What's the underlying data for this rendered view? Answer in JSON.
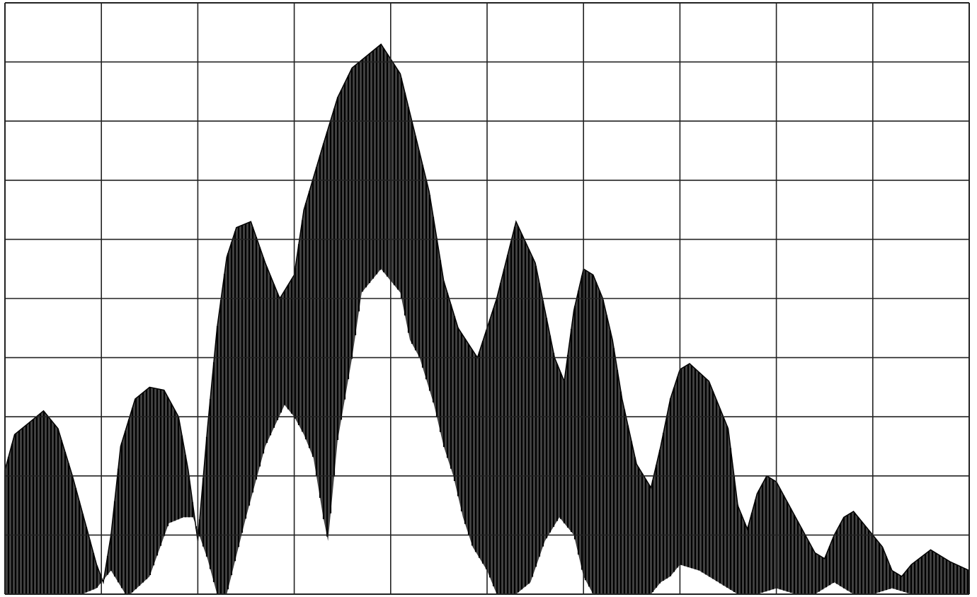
{
  "chart_data": {
    "type": "area",
    "title": "",
    "xlabel": "",
    "ylabel": "",
    "grid": true,
    "grid_divisions": {
      "x": 10,
      "y": 10
    },
    "xlim": [
      0,
      10
    ],
    "ylim": [
      0,
      10
    ],
    "trace_color": "#1a1a1a",
    "grid_color": "#222222",
    "background": "#ffffff",
    "series": [
      {
        "upper": {
          "x": [
            0.0,
            0.1,
            0.25,
            0.4,
            0.55,
            0.7,
            0.85,
            0.95,
            1.02,
            1.1,
            1.2,
            1.35,
            1.5,
            1.65,
            1.8,
            1.9,
            2.0,
            2.1,
            2.2,
            2.3,
            2.4,
            2.55,
            2.7,
            2.85,
            3.0,
            3.1,
            3.3,
            3.45,
            3.6,
            3.9,
            4.1,
            4.25,
            4.4,
            4.55,
            4.7,
            4.9,
            5.1,
            5.3,
            5.5,
            5.7,
            5.8,
            5.9,
            6.0,
            6.1,
            6.2,
            6.3,
            6.4,
            6.55,
            6.7,
            6.8,
            6.9,
            7.0,
            7.1,
            7.3,
            7.5,
            7.6,
            7.7,
            7.8,
            7.9,
            8.0,
            8.2,
            8.4,
            8.5,
            8.6,
            8.7,
            8.8,
            8.9,
            9.1,
            9.2,
            9.3,
            9.4,
            9.6,
            9.8,
            10.0
          ],
          "y": [
            2.1,
            2.7,
            2.9,
            3.1,
            2.8,
            2.0,
            1.1,
            0.5,
            0.2,
            1.0,
            2.5,
            3.3,
            3.5,
            3.45,
            3.0,
            2.1,
            0.9,
            2.8,
            4.5,
            5.7,
            6.2,
            6.3,
            5.6,
            5.0,
            5.4,
            6.5,
            7.6,
            8.4,
            8.9,
            9.3,
            8.8,
            7.8,
            6.8,
            5.3,
            4.5,
            4.0,
            5.0,
            6.3,
            5.6,
            4.0,
            3.6,
            4.8,
            5.5,
            5.4,
            5.0,
            4.3,
            3.3,
            2.2,
            1.8,
            2.5,
            3.3,
            3.8,
            3.9,
            3.6,
            2.8,
            1.5,
            1.1,
            1.7,
            2.0,
            1.9,
            1.3,
            0.7,
            0.6,
            1.0,
            1.3,
            1.4,
            1.2,
            0.8,
            0.4,
            0.3,
            0.5,
            0.75,
            0.55,
            0.4
          ]
        },
        "lower": {
          "x": [
            0.0,
            0.2,
            0.4,
            0.6,
            0.8,
            0.95,
            1.1,
            1.25,
            1.3,
            1.5,
            1.7,
            1.85,
            1.95,
            2.1,
            2.2,
            2.3,
            2.5,
            2.7,
            2.9,
            3.0,
            3.1,
            3.2,
            3.3,
            3.35,
            3.45,
            3.6,
            3.7,
            3.9,
            4.1,
            4.2,
            4.3,
            4.45,
            4.55,
            4.65,
            4.75,
            4.85,
            5.0,
            5.1,
            5.2,
            5.3,
            5.45,
            5.6,
            5.75,
            5.9,
            6.0,
            6.1,
            6.2,
            6.3,
            6.4,
            6.5,
            6.7,
            6.8,
            6.9,
            7.0,
            7.2,
            7.4,
            7.6,
            7.8,
            8.0,
            8.2,
            8.4,
            8.6,
            8.8,
            9.0,
            9.2,
            9.4,
            9.6,
            9.8,
            10.0
          ],
          "y": [
            0.0,
            0.0,
            0.0,
            0.0,
            0.0,
            0.1,
            0.4,
            0.0,
            0.0,
            0.3,
            1.2,
            1.3,
            1.3,
            0.6,
            0.0,
            0.0,
            1.3,
            2.5,
            3.2,
            3.0,
            2.7,
            2.3,
            1.3,
            0.9,
            2.6,
            4.0,
            5.1,
            5.5,
            5.1,
            4.3,
            4.0,
            3.2,
            2.5,
            2.0,
            1.3,
            0.8,
            0.4,
            0.0,
            0.0,
            0.0,
            0.2,
            0.9,
            1.3,
            1.0,
            0.3,
            0.0,
            0.0,
            0.0,
            0.0,
            0.0,
            0.0,
            0.2,
            0.3,
            0.5,
            0.4,
            0.2,
            0.0,
            0.0,
            0.1,
            0.0,
            0.0,
            0.2,
            0.0,
            0.0,
            0.1,
            0.0,
            0.0,
            0.0,
            0.0
          ]
        }
      }
    ]
  }
}
